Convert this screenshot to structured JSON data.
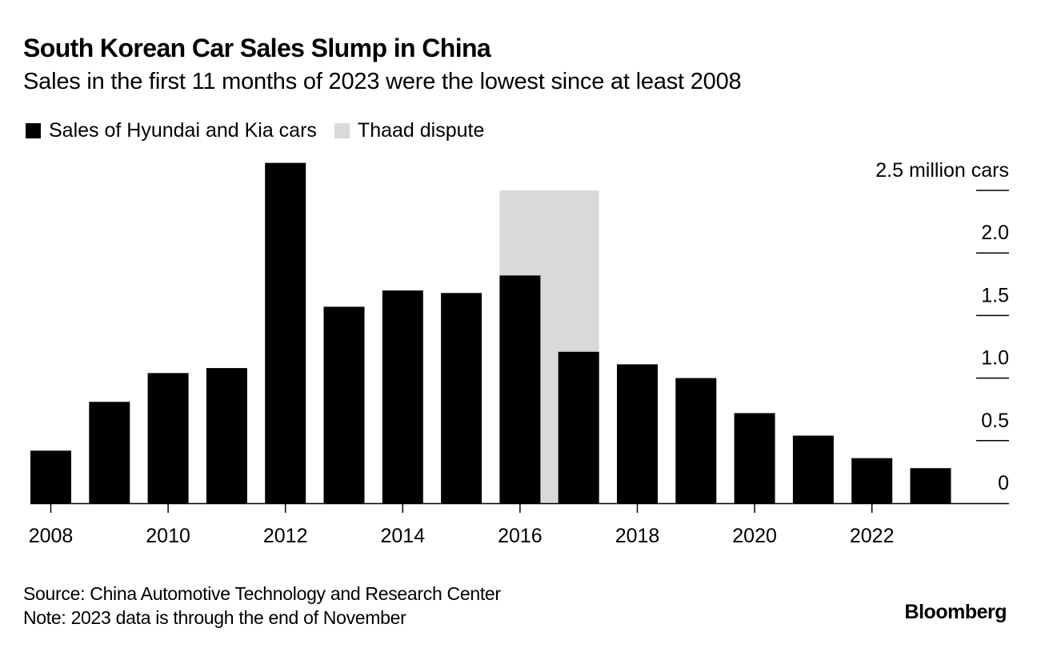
{
  "header": {
    "title": "South Korean Car Sales Slump in China",
    "subtitle": "Sales in the first 11 months of 2023 were the lowest since at least 2008"
  },
  "legend": [
    {
      "label": "Sales of Hyundai and Kia cars",
      "color": "#000000"
    },
    {
      "label": "Thaad dispute",
      "color": "#d9d9d9"
    }
  ],
  "footer": {
    "source": "Source: China Automotive Technology and Research Center",
    "note": "Note: 2023 data is through the end of November",
    "brand": "Bloomberg"
  },
  "chart_data": {
    "type": "bar",
    "title": "South Korean Car Sales Slump in China",
    "subtitle": "Sales in the first 11 months of 2023 were the lowest since at least 2008",
    "xlabel": "",
    "ylabel": "million cars",
    "ylim": [
      0,
      2.5
    ],
    "yticks": [
      0,
      0.5,
      1.0,
      1.5,
      2.0,
      2.5
    ],
    "ytick_labels": [
      "0",
      "0.5",
      "1.0",
      "1.5",
      "2.0",
      "2.5 million cars"
    ],
    "y_axis_side": "right",
    "categories": [
      "2008",
      "2009",
      "2010",
      "2011",
      "2012",
      "2013",
      "2014",
      "2015",
      "2016",
      "2017",
      "2018",
      "2019",
      "2020",
      "2021",
      "2022",
      "2023"
    ],
    "xtick_labels": [
      "2008",
      "2010",
      "2012",
      "2014",
      "2016",
      "2018",
      "2020",
      "2022"
    ],
    "series": [
      {
        "name": "Sales of Hyundai and Kia cars",
        "color": "#000000",
        "values": [
          0.42,
          0.81,
          1.04,
          1.08,
          2.72,
          1.57,
          1.7,
          1.68,
          1.82,
          1.21,
          1.11,
          1.0,
          0.72,
          0.54,
          0.36,
          0.28
        ]
      }
    ],
    "shaded_regions": [
      {
        "label": "Thaad dispute",
        "color": "#d9d9d9",
        "from_category": "2016",
        "to_category": "2017",
        "y_top": 2.5
      }
    ],
    "legend_position": "top-left",
    "grid": false
  }
}
